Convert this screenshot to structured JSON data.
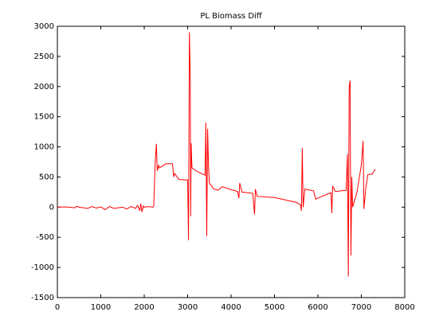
{
  "chart_data": {
    "type": "line",
    "title": "PL  Biomass Diff",
    "color": "#ff0000",
    "x": [
      0,
      200,
      400,
      450,
      500,
      700,
      800,
      900,
      1000,
      1100,
      1200,
      1300,
      1500,
      1600,
      1700,
      1800,
      1850,
      1900,
      1920,
      1950,
      1980,
      2000,
      2100,
      2200,
      2220,
      2250,
      2280,
      2300,
      2330,
      2350,
      2500,
      2650,
      2680,
      2700,
      2800,
      3000,
      3020,
      3040,
      3060,
      3070,
      3080,
      3100,
      3200,
      3400,
      3420,
      3440,
      3460,
      3480,
      3500,
      3600,
      3700,
      3800,
      4000,
      4150,
      4180,
      4200,
      4250,
      4500,
      4540,
      4560,
      4600,
      5000,
      5500,
      5600,
      5620,
      5640,
      5660,
      5700,
      5900,
      5950,
      6000,
      6300,
      6320,
      6340,
      6400,
      6650,
      6680,
      6700,
      6720,
      6740,
      6760,
      6780,
      6800,
      6900,
      7000,
      7040,
      7060,
      7100,
      7150,
      7250,
      7320
    ],
    "values": [
      0,
      5,
      -10,
      15,
      0,
      -20,
      10,
      -15,
      5,
      -40,
      10,
      -20,
      0,
      -30,
      10,
      -20,
      30,
      -60,
      60,
      -80,
      20,
      0,
      10,
      0,
      20,
      700,
      1050,
      600,
      700,
      650,
      720,
      720,
      500,
      560,
      460,
      450,
      -550,
      2900,
      2200,
      -150,
      1060,
      650,
      600,
      530,
      1400,
      -480,
      1300,
      700,
      400,
      300,
      280,
      340,
      290,
      260,
      150,
      400,
      250,
      230,
      -120,
      300,
      180,
      160,
      80,
      40,
      -60,
      980,
      0,
      300,
      270,
      130,
      150,
      240,
      -100,
      350,
      260,
      280,
      880,
      -1150,
      2000,
      2100,
      -800,
      500,
      0,
      250,
      700,
      1100,
      -30,
      300,
      540,
      550,
      630
    ],
    "xlim": [
      0,
      8000
    ],
    "xticks": [
      0,
      1000,
      2000,
      3000,
      4000,
      5000,
      6000,
      7000,
      8000
    ],
    "ylim": [
      -1500,
      3000
    ],
    "yticks": [
      -1500,
      -1000,
      -500,
      0,
      500,
      1000,
      1500,
      2000,
      2500,
      3000
    ]
  }
}
